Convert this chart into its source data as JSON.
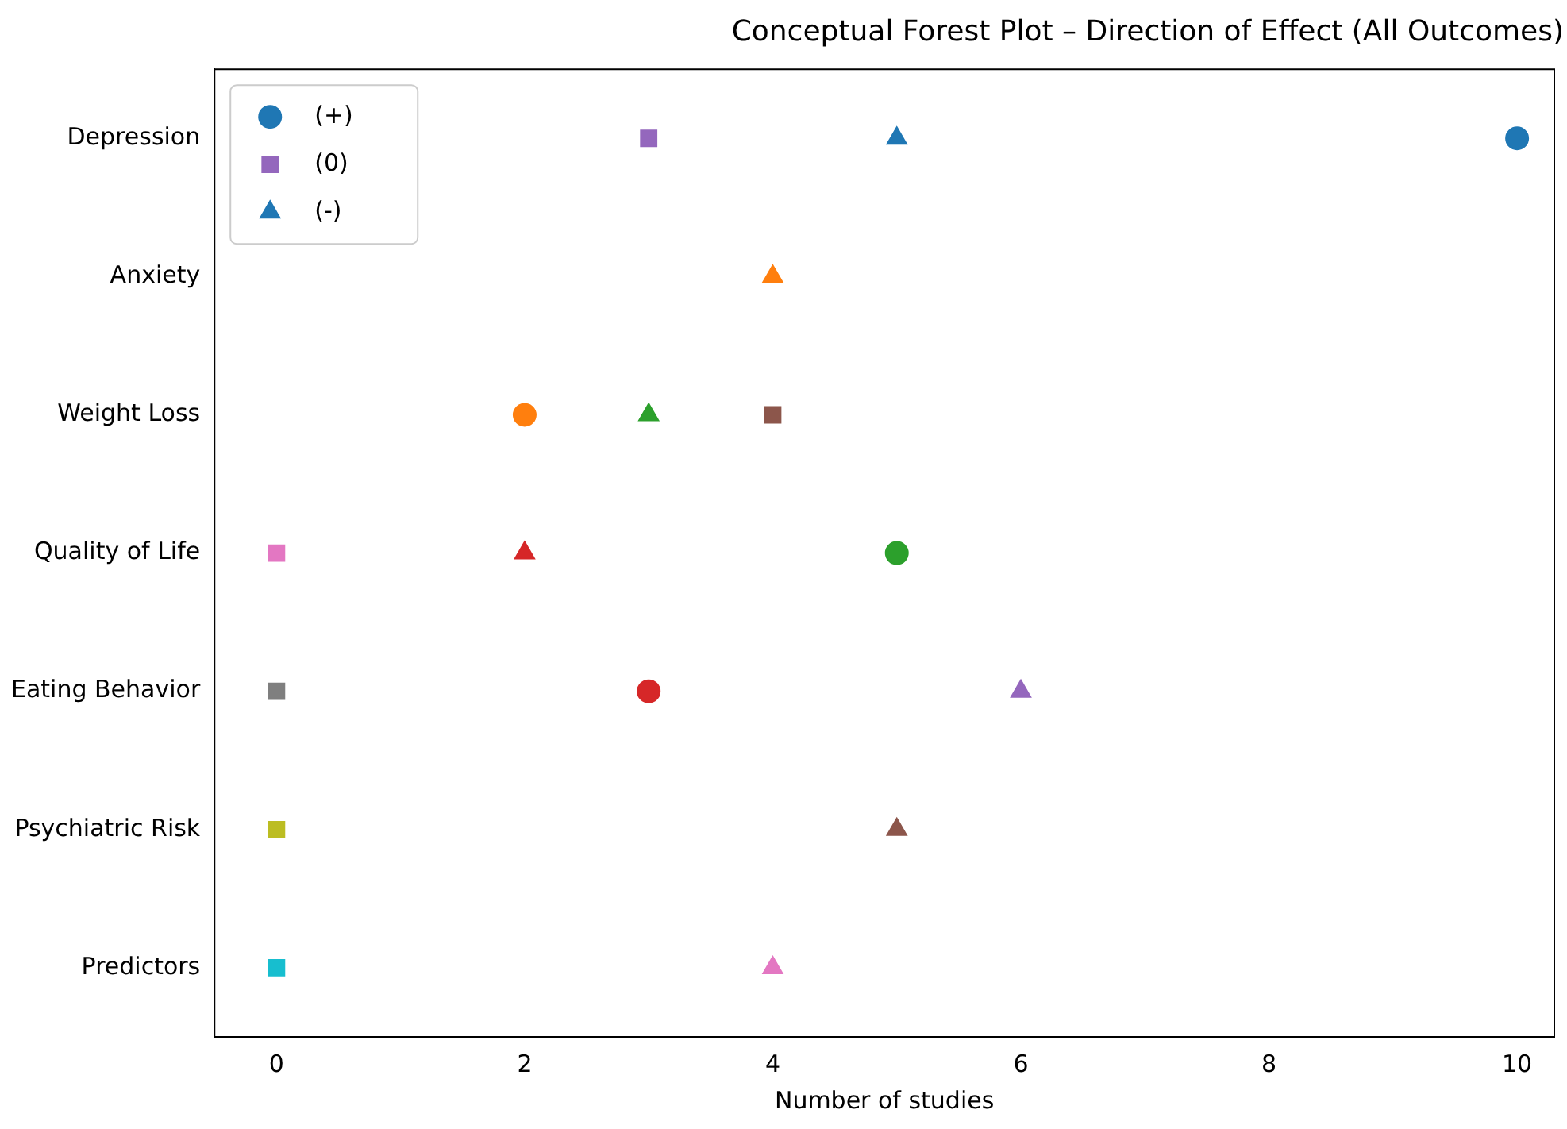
{
  "chart_data": {
    "type": "scatter",
    "title": "Conceptual Forest Plot – Direction of Effect (All Outcomes)",
    "xlabel": "Number of studies",
    "orientation": "horizontal",
    "categories": [
      "Depression",
      "Anxiety",
      "Weight Loss",
      "Quality of Life",
      "Eating Behavior",
      "Psychiatric Risk",
      "Predictors"
    ],
    "series": [
      {
        "name": "(+)",
        "color": "#1f77b4",
        "marker": "circle",
        "values": [
          10,
          null,
          2,
          5,
          3,
          null,
          null
        ],
        "colors": [
          "#1f77b4",
          null,
          "#ff7f0e",
          "#2ca02c",
          "#d62728",
          null,
          null
        ]
      },
      {
        "name": "(0)",
        "color": "#9467bd",
        "marker": "square",
        "values": [
          3,
          null,
          4,
          0,
          0,
          0,
          0
        ],
        "colors": [
          "#9467bd",
          null,
          "#8c564b",
          "#e377c2",
          "#7f7f7f",
          "#bcbd22",
          "#17becf"
        ]
      },
      {
        "name": "(-)",
        "color": "#1f77b4",
        "marker": "triangle",
        "values": [
          5,
          4,
          3,
          2,
          6,
          5,
          4
        ],
        "colors": [
          "#1f77b4",
          "#ff7f0e",
          "#2ca02c",
          "#d62728",
          "#9467bd",
          "#8c564b",
          "#e377c2"
        ]
      }
    ],
    "xlim": [
      -0.5,
      10.3
    ],
    "xticks": [
      0,
      2,
      4,
      6,
      8,
      10
    ],
    "grid": false,
    "legend": "top left"
  }
}
